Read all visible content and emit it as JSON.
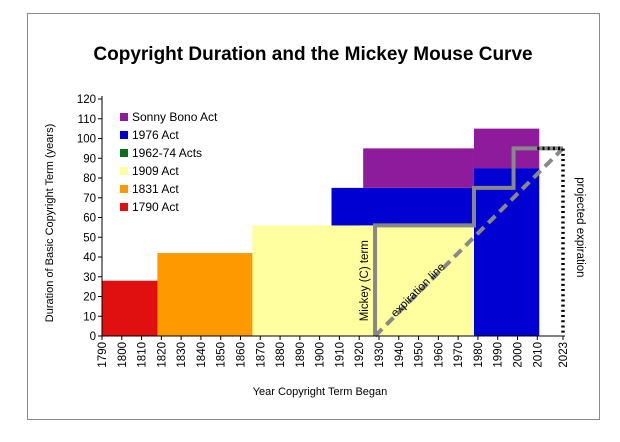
{
  "chart_data": {
    "type": "area",
    "title": "Copyright Duration and the Mickey Mouse Curve",
    "xlabel": "Year Copyright Term Began",
    "ylabel": "Duration of Basic Copyright Term (years)",
    "xlim": [
      1790,
      2023
    ],
    "ylim": [
      0,
      120
    ],
    "x_ticks": [
      "1790",
      "1800",
      "1810",
      "1820",
      "1830",
      "1840",
      "1850",
      "1860",
      "1870",
      "1880",
      "1890",
      "1900",
      "1910",
      "1920",
      "1930",
      "1940",
      "1950",
      "1960",
      "1970",
      "1980",
      "1990",
      "2000",
      "2010",
      "2023"
    ],
    "y_ticks": [
      "0",
      "10",
      "20",
      "30",
      "40",
      "50",
      "60",
      "70",
      "80",
      "90",
      "100",
      "110",
      "120"
    ],
    "series": [
      {
        "name": "Sonny Bono Act",
        "color": "#8e1b9c",
        "regions": [
          {
            "x_start": 1922,
            "x_end": 1978,
            "y_bottom": 75,
            "y_top": 95
          },
          {
            "x_start": 1978,
            "x_end": 2011,
            "y_bottom": 85,
            "y_top": 105
          }
        ]
      },
      {
        "name": "1976 Act",
        "color": "#0000d2",
        "regions": [
          {
            "x_start": 1906,
            "x_end": 1978,
            "y_bottom": 56,
            "y_top": 75
          },
          {
            "x_start": 1978,
            "x_end": 2011,
            "y_bottom": 0,
            "y_top": 85
          }
        ]
      },
      {
        "name": "1962-74 Acts",
        "color": "#0a6e1e",
        "regions": [
          {
            "x_start": 1906,
            "x_end": 1920,
            "y_bottom": 56,
            "y_top": 70
          }
        ]
      },
      {
        "name": "1909 Act",
        "color": "#ffffa0",
        "regions": [
          {
            "x_start": 1866,
            "x_end": 1978,
            "y_bottom": 0,
            "y_top": 56
          }
        ]
      },
      {
        "name": "1831 Act",
        "color": "#ff9900",
        "regions": [
          {
            "x_start": 1818,
            "x_end": 1909,
            "y_bottom": 0,
            "y_top": 42
          }
        ]
      },
      {
        "name": "1790 Act",
        "color": "#e01010",
        "regions": [
          {
            "x_start": 1790,
            "x_end": 1831,
            "y_bottom": 0,
            "y_top": 28
          }
        ]
      }
    ],
    "mickey_term": {
      "label": "Mickey (C) term",
      "color": "#888888",
      "points": [
        [
          1928,
          0
        ],
        [
          1928,
          56
        ],
        [
          1978,
          56
        ],
        [
          1978,
          75
        ],
        [
          1998,
          75
        ],
        [
          1998,
          95
        ],
        [
          2023,
          95
        ]
      ]
    },
    "expiration_line": {
      "label": "expiration line",
      "color": "#888888",
      "points": [
        [
          1928,
          0
        ],
        [
          2023,
          95
        ]
      ]
    },
    "projected_expiration": {
      "label": "projected expiration",
      "color": "#000000",
      "points": [
        [
          2010,
          95
        ],
        [
          2023,
          95
        ],
        [
          2023,
          0
        ]
      ]
    },
    "legend_position": "top-left",
    "grid": false
  }
}
